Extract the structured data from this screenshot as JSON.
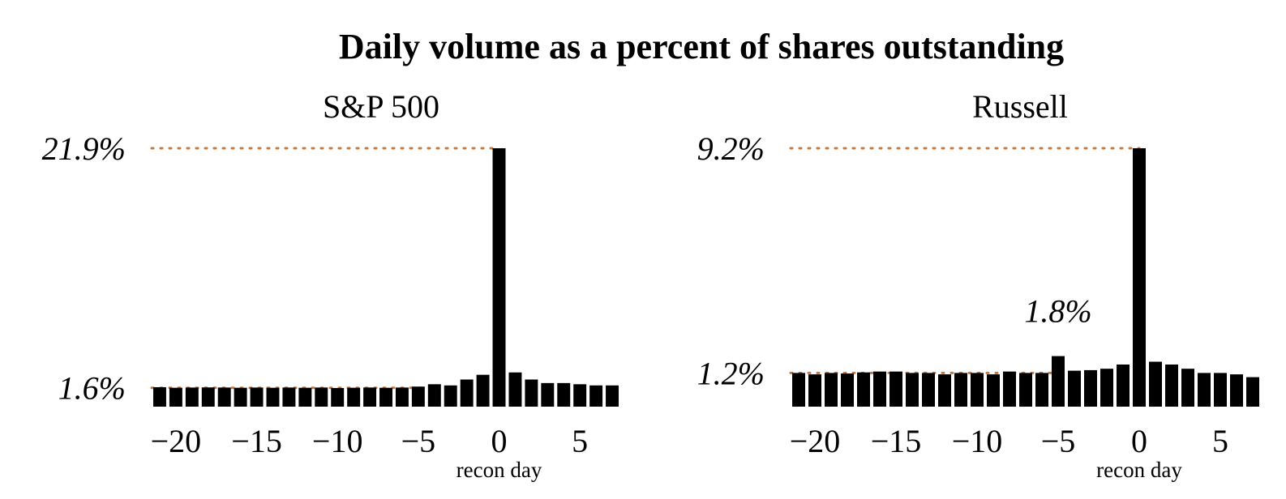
{
  "title": "Daily volume as a percent of shares outstanding",
  "colors": {
    "bar": "#000000",
    "reference_line": "#c8783a"
  },
  "chart_data": [
    {
      "type": "bar",
      "title": "S&P 500",
      "xlabel": "recon day",
      "ylabel": "",
      "x": [
        -21,
        -20,
        -19,
        -18,
        -17,
        -16,
        -15,
        -14,
        -13,
        -12,
        -11,
        -10,
        -9,
        -8,
        -7,
        -6,
        -5,
        -4,
        -3,
        -2,
        -1,
        0,
        1,
        2,
        3,
        4,
        5,
        6,
        7
      ],
      "values": [
        1.65,
        1.6,
        1.62,
        1.63,
        1.62,
        1.6,
        1.62,
        1.6,
        1.62,
        1.6,
        1.62,
        1.58,
        1.6,
        1.62,
        1.6,
        1.62,
        1.7,
        1.9,
        1.8,
        2.3,
        2.7,
        21.9,
        2.9,
        2.3,
        2.0,
        2.0,
        1.9,
        1.8,
        1.8
      ],
      "xticks": [
        -20,
        -15,
        -10,
        -5,
        0,
        5
      ],
      "xtick_labels": [
        "−20",
        "−15",
        "−10",
        "−5",
        "0",
        "5"
      ],
      "ylim": [
        0,
        21.9
      ],
      "reference_lines": [
        {
          "value": 21.9,
          "label": "21.9%"
        },
        {
          "value": 1.6,
          "label": "1.6%"
        }
      ],
      "annotations": []
    },
    {
      "type": "bar",
      "title": "Russell",
      "xlabel": "recon day",
      "ylabel": "",
      "x": [
        -21,
        -20,
        -19,
        -18,
        -17,
        -16,
        -15,
        -14,
        -13,
        -12,
        -11,
        -10,
        -9,
        -8,
        -7,
        -6,
        -5,
        -4,
        -3,
        -2,
        -1,
        0,
        1,
        2,
        3,
        4,
        5,
        6,
        7
      ],
      "values": [
        1.2,
        1.15,
        1.2,
        1.18,
        1.22,
        1.25,
        1.25,
        1.2,
        1.2,
        1.15,
        1.2,
        1.2,
        1.15,
        1.25,
        1.2,
        1.2,
        1.8,
        1.28,
        1.3,
        1.35,
        1.5,
        9.2,
        1.6,
        1.5,
        1.35,
        1.2,
        1.2,
        1.15,
        1.05
      ],
      "xticks": [
        -20,
        -15,
        -10,
        -5,
        0,
        5
      ],
      "xtick_labels": [
        "−20",
        "−15",
        "−10",
        "−5",
        "0",
        "5"
      ],
      "ylim": [
        0,
        9.2
      ],
      "reference_lines": [
        {
          "value": 9.2,
          "label": "9.2%"
        },
        {
          "value": 1.2,
          "label": "1.2%"
        }
      ],
      "annotations": [
        {
          "x": -5,
          "label": "1.8%"
        }
      ]
    }
  ]
}
